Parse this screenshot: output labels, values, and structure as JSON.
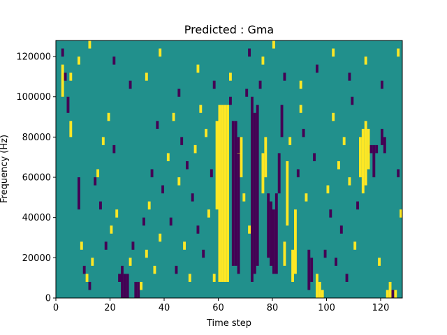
{
  "chart_data": {
    "type": "heatmap",
    "title": "Predicted : Gma",
    "xlabel": "Time step",
    "ylabel": "Frequency (Hz)",
    "xlim": [
      0,
      128
    ],
    "ylim": [
      0,
      128000
    ],
    "xticks": [
      0,
      20,
      40,
      60,
      80,
      100,
      120
    ],
    "yticks": [
      0,
      20000,
      40000,
      60000,
      80000,
      100000,
      120000
    ],
    "ncols": 128,
    "nrows": 64,
    "levels": [
      -1,
      0,
      1
    ],
    "background_value": 0,
    "colormap": {
      "-1": "#440154",
      "0": "#21908c",
      "1": "#fde725"
    },
    "grid": false,
    "legend": "none",
    "cells": [
      [
        60,
        4,
        48,
        1
      ],
      [
        61,
        4,
        48,
        1
      ],
      [
        62,
        4,
        48,
        1
      ],
      [
        63,
        4,
        48,
        1
      ],
      [
        59,
        22,
        44,
        1
      ],
      [
        60,
        42,
        36,
        1
      ],
      [
        61,
        42,
        36,
        1
      ],
      [
        62,
        42,
        36,
        1
      ],
      [
        63,
        42,
        36,
        1
      ],
      [
        65,
        8,
        44,
        -1
      ],
      [
        66,
        8,
        44,
        -1
      ],
      [
        67,
        6,
        40,
        -1
      ],
      [
        67,
        52,
        36,
        1
      ],
      [
        68,
        30,
        40,
        1
      ],
      [
        72,
        4,
        50,
        -1
      ],
      [
        73,
        6,
        46,
        -1
      ],
      [
        74,
        8,
        48,
        -1
      ],
      [
        76,
        26,
        36,
        1
      ],
      [
        77,
        30,
        40,
        1
      ],
      [
        78,
        10,
        26,
        -1
      ],
      [
        79,
        8,
        24,
        -1
      ],
      [
        80,
        6,
        22,
        -1
      ],
      [
        81,
        6,
        26,
        -1
      ],
      [
        82,
        26,
        36,
        -1
      ],
      [
        83,
        40,
        48,
        -1
      ],
      [
        84,
        8,
        14,
        1
      ],
      [
        85,
        18,
        34,
        1
      ],
      [
        86,
        38,
        40,
        1
      ],
      [
        87,
        4,
        12,
        1
      ],
      [
        88,
        6,
        22,
        1
      ],
      [
        93,
        2,
        12,
        -1
      ],
      [
        94,
        4,
        10,
        -1
      ],
      [
        96,
        0,
        6,
        1
      ],
      [
        97,
        0,
        4,
        1
      ],
      [
        98,
        0,
        2,
        1
      ],
      [
        112,
        30,
        40,
        1
      ],
      [
        113,
        26,
        42,
        1
      ],
      [
        114,
        28,
        44,
        1
      ],
      [
        115,
        32,
        42,
        1
      ],
      [
        116,
        36,
        38,
        -1
      ],
      [
        117,
        30,
        38,
        -1
      ],
      [
        118,
        36,
        38,
        -1
      ],
      [
        120,
        38,
        42,
        -1
      ],
      [
        121,
        36,
        40,
        -1
      ],
      [
        24,
        0,
        8,
        -1
      ],
      [
        25,
        0,
        6,
        -1
      ],
      [
        26,
        0,
        6,
        -1
      ],
      [
        29,
        0,
        4,
        -1
      ],
      [
        30,
        0,
        4,
        -1
      ],
      [
        122,
        0,
        2,
        1
      ],
      [
        123,
        0,
        4,
        1
      ],
      [
        124,
        0,
        2,
        -1
      ],
      [
        125,
        0,
        2,
        1
      ],
      [
        2,
        50,
        58,
        1
      ],
      [
        3,
        54,
        56,
        -1
      ],
      [
        4,
        46,
        50,
        -1
      ],
      [
        5,
        40,
        44,
        1
      ],
      [
        8,
        22,
        30,
        -1
      ],
      [
        9,
        12,
        14,
        1
      ],
      [
        10,
        6,
        8,
        -1
      ],
      [
        11,
        4,
        6,
        1
      ],
      [
        12,
        2,
        4,
        -1
      ],
      [
        13,
        8,
        10,
        1
      ],
      [
        14,
        28,
        30,
        -1
      ],
      [
        15,
        30,
        32,
        1
      ],
      [
        16,
        22,
        24,
        -1
      ],
      [
        17,
        38,
        40,
        1
      ],
      [
        18,
        12,
        14,
        -1
      ],
      [
        19,
        44,
        46,
        1
      ],
      [
        20,
        16,
        18,
        1
      ],
      [
        21,
        36,
        38,
        -1
      ],
      [
        22,
        20,
        22,
        1
      ],
      [
        23,
        4,
        6,
        -1
      ],
      [
        27,
        8,
        10,
        1
      ],
      [
        28,
        12,
        14,
        -1
      ],
      [
        31,
        2,
        4,
        1
      ],
      [
        32,
        18,
        20,
        -1
      ],
      [
        33,
        10,
        12,
        1
      ],
      [
        34,
        22,
        24,
        1
      ],
      [
        35,
        30,
        32,
        -1
      ],
      [
        36,
        6,
        8,
        1
      ],
      [
        37,
        42,
        44,
        -1
      ],
      [
        38,
        14,
        16,
        1
      ],
      [
        39,
        26,
        28,
        -1
      ],
      [
        41,
        34,
        36,
        1
      ],
      [
        42,
        18,
        20,
        -1
      ],
      [
        43,
        44,
        46,
        1
      ],
      [
        44,
        6,
        8,
        -1
      ],
      [
        45,
        28,
        30,
        1
      ],
      [
        46,
        38,
        40,
        -1
      ],
      [
        47,
        12,
        14,
        1
      ],
      [
        48,
        32,
        34,
        -1
      ],
      [
        49,
        4,
        6,
        1
      ],
      [
        50,
        24,
        26,
        -1
      ],
      [
        51,
        36,
        38,
        1
      ],
      [
        52,
        16,
        18,
        -1
      ],
      [
        53,
        46,
        48,
        1
      ],
      [
        54,
        10,
        12,
        -1
      ],
      [
        55,
        40,
        42,
        1
      ],
      [
        56,
        20,
        22,
        1
      ],
      [
        57,
        30,
        32,
        -1
      ],
      [
        58,
        4,
        6,
        1
      ],
      [
        64,
        48,
        50,
        -1
      ],
      [
        69,
        24,
        26,
        1
      ],
      [
        70,
        50,
        52,
        -1
      ],
      [
        71,
        16,
        18,
        1
      ],
      [
        75,
        52,
        54,
        -1
      ],
      [
        89,
        30,
        32,
        -1
      ],
      [
        90,
        46,
        48,
        1
      ],
      [
        91,
        40,
        42,
        -1
      ],
      [
        92,
        24,
        26,
        1
      ],
      [
        95,
        34,
        36,
        -1
      ],
      [
        99,
        10,
        12,
        -1
      ],
      [
        100,
        26,
        28,
        1
      ],
      [
        101,
        20,
        22,
        -1
      ],
      [
        102,
        44,
        46,
        1
      ],
      [
        103,
        8,
        10,
        -1
      ],
      [
        104,
        32,
        34,
        1
      ],
      [
        105,
        16,
        18,
        -1
      ],
      [
        106,
        38,
        40,
        1
      ],
      [
        107,
        4,
        6,
        -1
      ],
      [
        108,
        28,
        30,
        1
      ],
      [
        109,
        48,
        50,
        -1
      ],
      [
        110,
        12,
        14,
        1
      ],
      [
        111,
        22,
        24,
        -1
      ],
      [
        119,
        8,
        10,
        1
      ],
      [
        126,
        30,
        32,
        -1
      ],
      [
        127,
        20,
        22,
        1
      ],
      [
        2,
        60,
        62,
        -1
      ],
      [
        5,
        54,
        56,
        1
      ],
      [
        8,
        58,
        60,
        1
      ],
      [
        12,
        62,
        64,
        1
      ],
      [
        21,
        58,
        60,
        -1
      ],
      [
        27,
        52,
        54,
        -1
      ],
      [
        33,
        54,
        56,
        1
      ],
      [
        38,
        60,
        62,
        1
      ],
      [
        45,
        50,
        52,
        -1
      ],
      [
        52,
        56,
        58,
        1
      ],
      [
        58,
        52,
        54,
        -1
      ],
      [
        64,
        54,
        56,
        1
      ],
      [
        71,
        60,
        62,
        -1
      ],
      [
        76,
        58,
        60,
        1
      ],
      [
        80,
        62,
        64,
        1
      ],
      [
        84,
        54,
        56,
        -1
      ],
      [
        90,
        52,
        54,
        1
      ],
      [
        96,
        56,
        58,
        -1
      ],
      [
        102,
        60,
        62,
        1
      ],
      [
        108,
        54,
        56,
        -1
      ],
      [
        114,
        58,
        60,
        1
      ],
      [
        120,
        52,
        54,
        -1
      ],
      [
        126,
        60,
        62,
        1
      ]
    ]
  }
}
